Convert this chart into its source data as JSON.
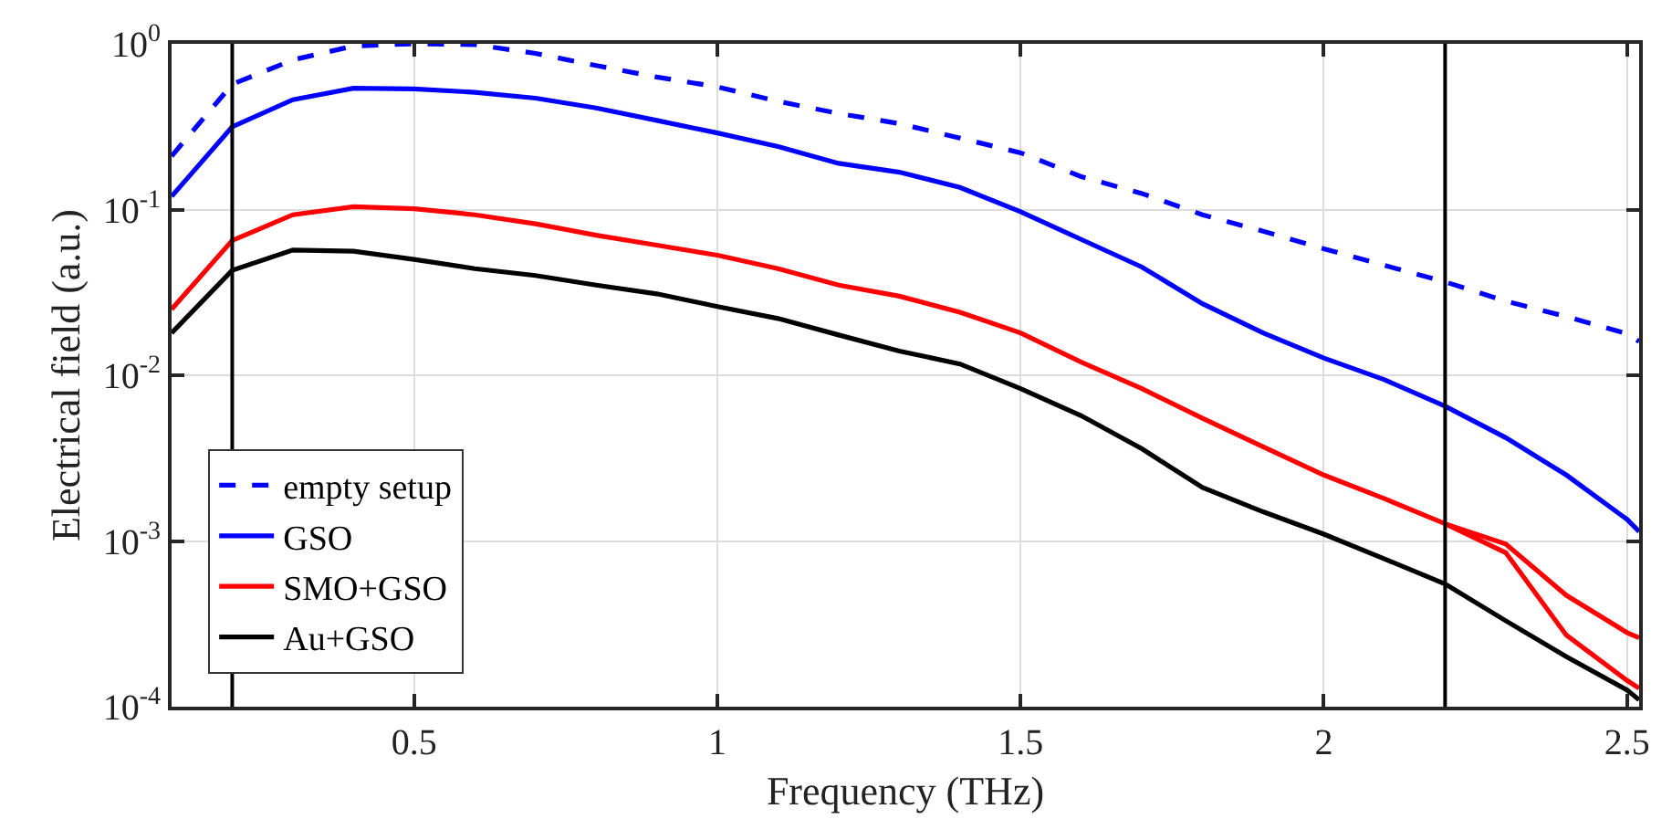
{
  "chart_data": {
    "type": "line",
    "xlabel": "Frequency (THz)",
    "ylabel": "Electrical field (a.u.)",
    "log": "y",
    "grid": true,
    "legend": "bottom left",
    "marker": "none",
    "xlim": [
      0.1,
      2.52
    ],
    "xticks": [
      0.5,
      1,
      1.5,
      2,
      2.5
    ],
    "ylim": [
      0.0001,
      1
    ],
    "yticks": [
      {
        "value": 0.0001,
        "label": "10$^{-4}$"
      },
      {
        "value": 0.001,
        "label": "10$^{-3}$"
      },
      {
        "value": 0.01,
        "label": "10$^{-2}$"
      },
      {
        "value": 0.1,
        "label": "10$^{-1}$"
      },
      {
        "value": 1,
        "label": "10$^{0}$"
      }
    ],
    "x": [
      0.1,
      0.2,
      0.3,
      0.4,
      0.5,
      0.6,
      0.7,
      0.8,
      0.9,
      1.0,
      1.1,
      1.2,
      1.3,
      1.4,
      1.5,
      1.6,
      1.7,
      1.8,
      1.9,
      2.0,
      2.1,
      2.2,
      2.3,
      2.4,
      2.5,
      2.52
    ],
    "series": [
      {
        "name": "empty setup",
        "color": "#0000ff",
        "line_style": "dashed",
        "values": [
          0.21,
          0.57,
          0.8,
          0.97,
          1.0,
          0.99,
          0.875,
          0.74,
          0.63,
          0.55,
          0.45,
          0.38,
          0.33,
          0.27,
          0.22,
          0.158,
          0.125,
          0.093,
          0.074,
          0.058,
          0.046,
          0.0366,
          0.028,
          0.0226,
          0.0178,
          0.016
        ]
      },
      {
        "name": "GSO",
        "color": "#0000ff",
        "line_style": "solid",
        "values": [
          0.12,
          0.316,
          0.46,
          0.54,
          0.535,
          0.51,
          0.47,
          0.41,
          0.345,
          0.29,
          0.24,
          0.19,
          0.168,
          0.136,
          0.097,
          0.066,
          0.045,
          0.027,
          0.018,
          0.0127,
          0.0094,
          0.0065,
          0.0042,
          0.0025,
          0.00135,
          0.00114
        ]
      },
      {
        "name": "SMO+GSO",
        "color": "#ff0000",
        "line_style": "solid",
        "values": [
          0.025,
          0.065,
          0.093,
          0.104,
          0.101,
          0.093,
          0.082,
          0.07,
          0.061,
          0.053,
          0.044,
          0.035,
          0.03,
          0.024,
          0.018,
          0.012,
          0.0083,
          0.0055,
          0.0037,
          0.0025,
          0.0018,
          0.00127,
          0.00096,
          0.00047,
          0.00028,
          0.00026
        ]
      },
      {
        "name": "Au+GSO",
        "color": "#000000",
        "line_style": "solid",
        "values": [
          0.018,
          0.043,
          0.057,
          0.056,
          0.05,
          0.044,
          0.04,
          0.035,
          0.031,
          0.026,
          0.022,
          0.0175,
          0.014,
          0.0117,
          0.0083,
          0.0057,
          0.0036,
          0.0021,
          0.0015,
          0.0011,
          0.00078,
          0.00055,
          0.00033,
          0.0002,
          0.000126,
          0.00011
        ]
      },
      {
        "color": "#ff0000",
        "line_style": "solid",
        "x": [
          2.2,
          2.3,
          2.4,
          2.5,
          2.52
        ],
        "values": [
          0.00127,
          0.00085,
          0.00027,
          0.000144,
          0.000129
        ]
      }
    ],
    "ref_lines": [
      {
        "axis": "x",
        "value": 0.2,
        "color": "#000000"
      },
      {
        "axis": "x",
        "value": 2.2,
        "color": "#000000"
      }
    ]
  }
}
